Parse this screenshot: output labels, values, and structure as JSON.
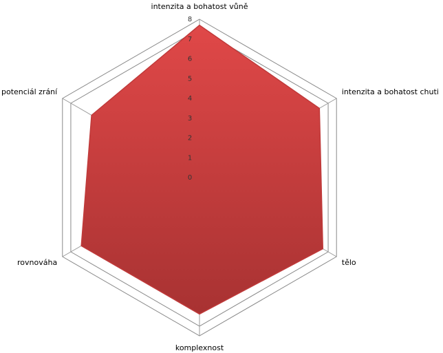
{
  "chart_data": {
    "type": "radar",
    "categories": [
      "intenzita a bohatost vůně",
      "intenzita a bohatost chuti",
      "tělo",
      "komplexnost",
      "rovnováha",
      "potenciál zrání"
    ],
    "values": [
      7.7,
      7.0,
      7.2,
      6.9,
      6.9,
      6.3
    ],
    "color": "#d44040",
    "ylim": [
      0,
      8
    ],
    "yticks": [
      0,
      1,
      2,
      3,
      4,
      5,
      6,
      7,
      8
    ]
  }
}
